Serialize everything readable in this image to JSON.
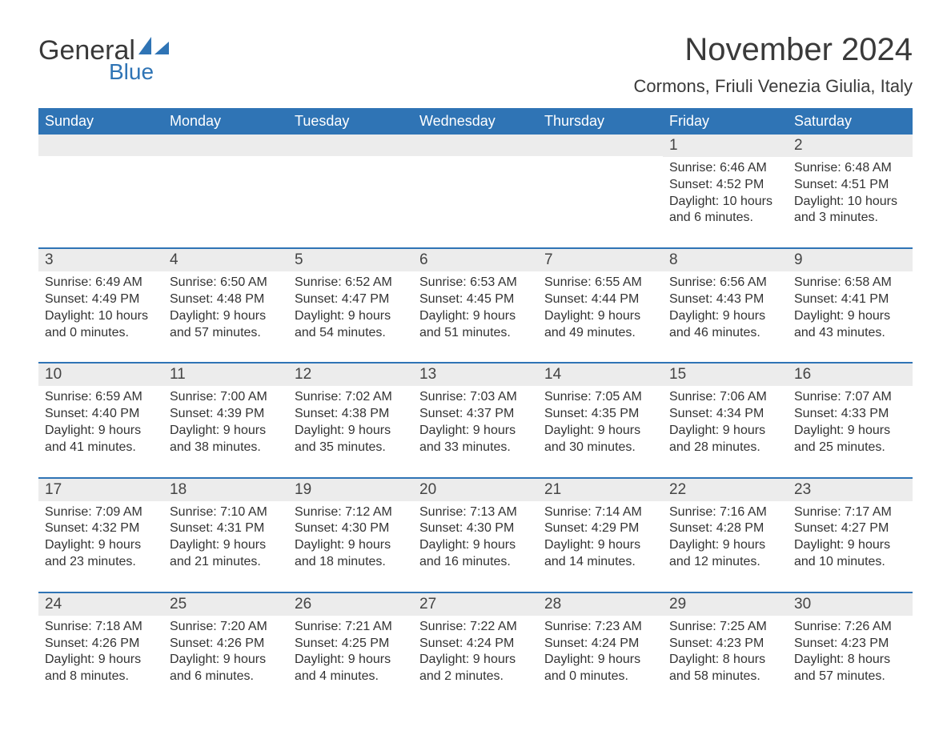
{
  "logo": {
    "top": "General",
    "bottom": "Blue"
  },
  "title": "November 2024",
  "location": "Cormons, Friuli Venezia Giulia, Italy",
  "colors": {
    "header_bg": "#2f74b5",
    "header_text": "#ffffff",
    "daynum_bg": "#ececec",
    "text": "#333333",
    "title_text": "#3a3a3a",
    "rule": "#2f74b5",
    "page_bg": "#ffffff"
  },
  "typography": {
    "month_title_pt": 40,
    "location_pt": 22,
    "weekday_pt": 18,
    "daynum_pt": 19,
    "body_pt": 16
  },
  "labels": {
    "sunrise": "Sunrise:",
    "sunset": "Sunset:",
    "daylight": "Daylight:"
  },
  "weekdays": [
    "Sunday",
    "Monday",
    "Tuesday",
    "Wednesday",
    "Thursday",
    "Friday",
    "Saturday"
  ],
  "weeks": [
    [
      null,
      null,
      null,
      null,
      null,
      {
        "n": "1",
        "sunrise": "6:46 AM",
        "sunset": "4:52 PM",
        "daylight": "10 hours and 6 minutes."
      },
      {
        "n": "2",
        "sunrise": "6:48 AM",
        "sunset": "4:51 PM",
        "daylight": "10 hours and 3 minutes."
      }
    ],
    [
      {
        "n": "3",
        "sunrise": "6:49 AM",
        "sunset": "4:49 PM",
        "daylight": "10 hours and 0 minutes."
      },
      {
        "n": "4",
        "sunrise": "6:50 AM",
        "sunset": "4:48 PM",
        "daylight": "9 hours and 57 minutes."
      },
      {
        "n": "5",
        "sunrise": "6:52 AM",
        "sunset": "4:47 PM",
        "daylight": "9 hours and 54 minutes."
      },
      {
        "n": "6",
        "sunrise": "6:53 AM",
        "sunset": "4:45 PM",
        "daylight": "9 hours and 51 minutes."
      },
      {
        "n": "7",
        "sunrise": "6:55 AM",
        "sunset": "4:44 PM",
        "daylight": "9 hours and 49 minutes."
      },
      {
        "n": "8",
        "sunrise": "6:56 AM",
        "sunset": "4:43 PM",
        "daylight": "9 hours and 46 minutes."
      },
      {
        "n": "9",
        "sunrise": "6:58 AM",
        "sunset": "4:41 PM",
        "daylight": "9 hours and 43 minutes."
      }
    ],
    [
      {
        "n": "10",
        "sunrise": "6:59 AM",
        "sunset": "4:40 PM",
        "daylight": "9 hours and 41 minutes."
      },
      {
        "n": "11",
        "sunrise": "7:00 AM",
        "sunset": "4:39 PM",
        "daylight": "9 hours and 38 minutes."
      },
      {
        "n": "12",
        "sunrise": "7:02 AM",
        "sunset": "4:38 PM",
        "daylight": "9 hours and 35 minutes."
      },
      {
        "n": "13",
        "sunrise": "7:03 AM",
        "sunset": "4:37 PM",
        "daylight": "9 hours and 33 minutes."
      },
      {
        "n": "14",
        "sunrise": "7:05 AM",
        "sunset": "4:35 PM",
        "daylight": "9 hours and 30 minutes."
      },
      {
        "n": "15",
        "sunrise": "7:06 AM",
        "sunset": "4:34 PM",
        "daylight": "9 hours and 28 minutes."
      },
      {
        "n": "16",
        "sunrise": "7:07 AM",
        "sunset": "4:33 PM",
        "daylight": "9 hours and 25 minutes."
      }
    ],
    [
      {
        "n": "17",
        "sunrise": "7:09 AM",
        "sunset": "4:32 PM",
        "daylight": "9 hours and 23 minutes."
      },
      {
        "n": "18",
        "sunrise": "7:10 AM",
        "sunset": "4:31 PM",
        "daylight": "9 hours and 21 minutes."
      },
      {
        "n": "19",
        "sunrise": "7:12 AM",
        "sunset": "4:30 PM",
        "daylight": "9 hours and 18 minutes."
      },
      {
        "n": "20",
        "sunrise": "7:13 AM",
        "sunset": "4:30 PM",
        "daylight": "9 hours and 16 minutes."
      },
      {
        "n": "21",
        "sunrise": "7:14 AM",
        "sunset": "4:29 PM",
        "daylight": "9 hours and 14 minutes."
      },
      {
        "n": "22",
        "sunrise": "7:16 AM",
        "sunset": "4:28 PM",
        "daylight": "9 hours and 12 minutes."
      },
      {
        "n": "23",
        "sunrise": "7:17 AM",
        "sunset": "4:27 PM",
        "daylight": "9 hours and 10 minutes."
      }
    ],
    [
      {
        "n": "24",
        "sunrise": "7:18 AM",
        "sunset": "4:26 PM",
        "daylight": "9 hours and 8 minutes."
      },
      {
        "n": "25",
        "sunrise": "7:20 AM",
        "sunset": "4:26 PM",
        "daylight": "9 hours and 6 minutes."
      },
      {
        "n": "26",
        "sunrise": "7:21 AM",
        "sunset": "4:25 PM",
        "daylight": "9 hours and 4 minutes."
      },
      {
        "n": "27",
        "sunrise": "7:22 AM",
        "sunset": "4:24 PM",
        "daylight": "9 hours and 2 minutes."
      },
      {
        "n": "28",
        "sunrise": "7:23 AM",
        "sunset": "4:24 PM",
        "daylight": "9 hours and 0 minutes."
      },
      {
        "n": "29",
        "sunrise": "7:25 AM",
        "sunset": "4:23 PM",
        "daylight": "8 hours and 58 minutes."
      },
      {
        "n": "30",
        "sunrise": "7:26 AM",
        "sunset": "4:23 PM",
        "daylight": "8 hours and 57 minutes."
      }
    ]
  ]
}
